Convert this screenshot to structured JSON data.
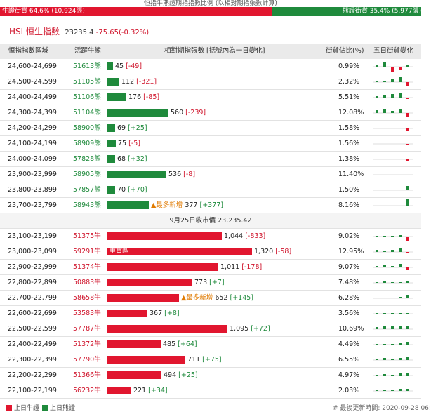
{
  "caption": "恒指牛熊證期指指數比例 (以相對期指張數計算)",
  "ratio": {
    "bull_label": "牛證街貨 64.6% (10,924張)",
    "bull_share": 64.6,
    "bear_label": "熊證街貨 35.4% (5,977張)",
    "bear_share": 35.4
  },
  "header": {
    "name": "HSI 恒生指數",
    "index": "23235.4",
    "change": "-75.65(-0.32%)"
  },
  "columns": {
    "range": "恒指指數區域",
    "code": "活躍牛熊",
    "qty": "相對期指張數 [括號內為一日變化]",
    "pct": "街貨佔比(%)",
    "history": "五日街貨變化"
  },
  "colors": {
    "bull": "#e1162f",
    "bear": "#1f8a3c",
    "new": "#e07a00"
  },
  "bear_rows": [
    {
      "range": "24,600-24,699",
      "code": "51613熊",
      "qty": "45",
      "chg": "[-49]",
      "qty_value": 45,
      "pct": "0.99%",
      "flag": "",
      "history": [
        {
          "v": 3,
          "c": "bear"
        },
        {
          "v": 6,
          "c": "bear"
        },
        {
          "v": -7,
          "c": "bull"
        },
        {
          "v": -5,
          "c": "bull"
        },
        {
          "v": 2,
          "c": "bear"
        }
      ]
    },
    {
      "range": "24,500-24,599",
      "code": "51105熊",
      "qty": "112",
      "chg": "[-321]",
      "qty_value": 112,
      "pct": "2.32%",
      "flag": "",
      "history": [
        {
          "v": 1,
          "c": "bear"
        },
        {
          "v": 2,
          "c": "bear"
        },
        {
          "v": 4,
          "c": "bear"
        },
        {
          "v": 7,
          "c": "bear"
        },
        {
          "v": -6,
          "c": "bull"
        }
      ]
    },
    {
      "range": "24,400-24,499",
      "code": "51106熊",
      "qty": "176",
      "chg": "[-85]",
      "qty_value": 176,
      "pct": "5.51%",
      "flag": "",
      "history": [
        {
          "v": 2,
          "c": "bear"
        },
        {
          "v": 4,
          "c": "bear"
        },
        {
          "v": 5,
          "c": "bear"
        },
        {
          "v": 7,
          "c": "bear"
        },
        {
          "v": -2,
          "c": "bull"
        }
      ]
    },
    {
      "range": "24,300-24,399",
      "code": "51104熊",
      "qty": "560",
      "chg": "[-239]",
      "qty_value": 560,
      "pct": "12.08%",
      "flag": "",
      "history": [
        {
          "v": 4,
          "c": "bear"
        },
        {
          "v": 5,
          "c": "bear"
        },
        {
          "v": 3,
          "c": "bear"
        },
        {
          "v": 6,
          "c": "bear"
        },
        {
          "v": -5,
          "c": "bull"
        }
      ]
    },
    {
      "range": "24,200-24,299",
      "code": "58900熊",
      "qty": "69",
      "chg": "[+25]",
      "qty_value": 69,
      "pct": "1.58%",
      "flag": "",
      "history": [
        {
          "v": 0,
          "c": "bear"
        },
        {
          "v": 0,
          "c": "bear"
        },
        {
          "v": 0,
          "c": "bear"
        },
        {
          "v": 0,
          "c": "bear"
        },
        {
          "v": -3,
          "c": "bull"
        }
      ]
    },
    {
      "range": "24,100-24,199",
      "code": "58909熊",
      "qty": "75",
      "chg": "[-5]",
      "qty_value": 75,
      "pct": "1.56%",
      "flag": "",
      "history": [
        {
          "v": 0,
          "c": "bear"
        },
        {
          "v": 0,
          "c": "bear"
        },
        {
          "v": 0,
          "c": "bear"
        },
        {
          "v": 0,
          "c": "bear"
        },
        {
          "v": -2,
          "c": "bull"
        }
      ]
    },
    {
      "range": "24,000-24,099",
      "code": "57828熊",
      "qty": "68",
      "chg": "[+32]",
      "qty_value": 68,
      "pct": "1.38%",
      "flag": "",
      "history": [
        {
          "v": 0,
          "c": "bear"
        },
        {
          "v": 0,
          "c": "bear"
        },
        {
          "v": 0,
          "c": "bear"
        },
        {
          "v": 0,
          "c": "bear"
        },
        {
          "v": -2,
          "c": "bull"
        }
      ]
    },
    {
      "range": "23,900-23,999",
      "code": "58905熊",
      "qty": "536",
      "chg": "[-8]",
      "qty_value": 536,
      "pct": "11.40%",
      "flag": "",
      "history": [
        {
          "v": 0,
          "c": "bear"
        },
        {
          "v": 0,
          "c": "bear"
        },
        {
          "v": 0,
          "c": "bear"
        },
        {
          "v": 0,
          "c": "bear"
        },
        {
          "v": -1,
          "c": "bull"
        }
      ]
    },
    {
      "range": "23,800-23,899",
      "code": "57857熊",
      "qty": "70",
      "chg": "[+70]",
      "qty_value": 70,
      "pct": "1.50%",
      "flag": "",
      "history": [
        {
          "v": 0,
          "c": "bear"
        },
        {
          "v": 0,
          "c": "bear"
        },
        {
          "v": 0,
          "c": "bear"
        },
        {
          "v": 0,
          "c": "bear"
        },
        {
          "v": 6,
          "c": "bear"
        }
      ]
    },
    {
      "range": "23,700-23,799",
      "code": "58943熊",
      "qty": "377",
      "chg": "[+377]",
      "qty_value": 377,
      "pct": "8.16%",
      "flag": "▲最多新增",
      "history": [
        {
          "v": 0,
          "c": "bear"
        },
        {
          "v": 0,
          "c": "bear"
        },
        {
          "v": 0,
          "c": "bear"
        },
        {
          "v": 0,
          "c": "bear"
        },
        {
          "v": 9,
          "c": "bear"
        }
      ]
    }
  ],
  "close_line": "9月25日收市價 23,235.42",
  "bull_rows": [
    {
      "range": "23,100-23,199",
      "code": "51375牛",
      "qty": "1,044",
      "chg": "[-833]",
      "qty_value": 1044,
      "pct": "9.02%",
      "flag": "",
      "label_in_bar": "",
      "history": [
        {
          "v": 1,
          "c": "bear"
        },
        {
          "v": 1,
          "c": "bear"
        },
        {
          "v": 1,
          "c": "bear"
        },
        {
          "v": 2,
          "c": "bear"
        },
        {
          "v": -7,
          "c": "bull"
        }
      ]
    },
    {
      "range": "23,000-23,099",
      "code": "59291牛",
      "qty": "1,320",
      "chg": "[-58]",
      "qty_value": 1320,
      "pct": "12.95%",
      "flag": "",
      "label_in_bar": "重貨區",
      "history": [
        {
          "v": 3,
          "c": "bear"
        },
        {
          "v": 2,
          "c": "bear"
        },
        {
          "v": 3,
          "c": "bear"
        },
        {
          "v": 6,
          "c": "bear"
        },
        {
          "v": -2,
          "c": "bull"
        }
      ]
    },
    {
      "range": "22,900-22,999",
      "code": "51374牛",
      "qty": "1,011",
      "chg": "[-178]",
      "qty_value": 1011,
      "pct": "9.07%",
      "flag": "",
      "label_in_bar": "",
      "history": [
        {
          "v": 2,
          "c": "bear"
        },
        {
          "v": 3,
          "c": "bear"
        },
        {
          "v": 2,
          "c": "bear"
        },
        {
          "v": 5,
          "c": "bear"
        },
        {
          "v": -3,
          "c": "bull"
        }
      ]
    },
    {
      "range": "22,800-22,899",
      "code": "50883牛",
      "qty": "773",
      "chg": "[+7]",
      "qty_value": 773,
      "pct": "7.48%",
      "flag": "",
      "label_in_bar": "",
      "history": [
        {
          "v": 1,
          "c": "bear"
        },
        {
          "v": 2,
          "c": "bear"
        },
        {
          "v": 1,
          "c": "bear"
        },
        {
          "v": 1,
          "c": "bear"
        },
        {
          "v": 2,
          "c": "bear"
        }
      ]
    },
    {
      "range": "22,700-22,799",
      "code": "58658牛",
      "qty": "652",
      "chg": "[+145]",
      "qty_value": 652,
      "pct": "6.28%",
      "flag": "▲最多新增",
      "label_in_bar": "",
      "history": [
        {
          "v": 1,
          "c": "bear"
        },
        {
          "v": 1,
          "c": "bear"
        },
        {
          "v": 1,
          "c": "bear"
        },
        {
          "v": 2,
          "c": "bear"
        },
        {
          "v": 4,
          "c": "bear"
        }
      ]
    },
    {
      "range": "22,600-22,699",
      "code": "53583牛",
      "qty": "367",
      "chg": "[+8]",
      "qty_value": 367,
      "pct": "3.56%",
      "flag": "",
      "label_in_bar": "",
      "history": [
        {
          "v": 1,
          "c": "bear"
        },
        {
          "v": 1,
          "c": "bear"
        },
        {
          "v": 1,
          "c": "bear"
        },
        {
          "v": 1,
          "c": "bear"
        },
        {
          "v": 1,
          "c": "bear"
        }
      ]
    },
    {
      "range": "22,500-22,599",
      "code": "57787牛",
      "qty": "1,095",
      "chg": "[+72]",
      "qty_value": 1095,
      "pct": "10.69%",
      "flag": "",
      "label_in_bar": "",
      "history": [
        {
          "v": 3,
          "c": "bear"
        },
        {
          "v": 4,
          "c": "bear"
        },
        {
          "v": 5,
          "c": "bear"
        },
        {
          "v": 4,
          "c": "bear"
        },
        {
          "v": 4,
          "c": "bear"
        }
      ]
    },
    {
      "range": "22,400-22,499",
      "code": "51372牛",
      "qty": "485",
      "chg": "[+64]",
      "qty_value": 485,
      "pct": "4.49%",
      "flag": "",
      "label_in_bar": "",
      "history": [
        {
          "v": 1,
          "c": "bear"
        },
        {
          "v": 1,
          "c": "bear"
        },
        {
          "v": 1,
          "c": "bear"
        },
        {
          "v": 3,
          "c": "bear"
        },
        {
          "v": 4,
          "c": "bear"
        }
      ]
    },
    {
      "range": "22,300-22,399",
      "code": "57790牛",
      "qty": "711",
      "chg": "[+75]",
      "qty_value": 711,
      "pct": "6.55%",
      "flag": "",
      "label_in_bar": "",
      "history": [
        {
          "v": 2,
          "c": "bear"
        },
        {
          "v": 3,
          "c": "bear"
        },
        {
          "v": 2,
          "c": "bear"
        },
        {
          "v": 3,
          "c": "bear"
        },
        {
          "v": 5,
          "c": "bear"
        }
      ]
    },
    {
      "range": "22,200-22,299",
      "code": "51366牛",
      "qty": "494",
      "chg": "[+25]",
      "qty_value": 494,
      "pct": "4.97%",
      "flag": "",
      "label_in_bar": "",
      "history": [
        {
          "v": 1,
          "c": "bear"
        },
        {
          "v": 2,
          "c": "bear"
        },
        {
          "v": 1,
          "c": "bear"
        },
        {
          "v": 3,
          "c": "bear"
        },
        {
          "v": 4,
          "c": "bear"
        }
      ]
    },
    {
      "range": "22,100-22,199",
      "code": "56232牛",
      "qty": "221",
      "chg": "[+34]",
      "qty_value": 221,
      "pct": "2.03%",
      "flag": "",
      "label_in_bar": "",
      "history": [
        {
          "v": 1,
          "c": "bear"
        },
        {
          "v": 1,
          "c": "bear"
        },
        {
          "v": 2,
          "c": "bear"
        },
        {
          "v": 3,
          "c": "bear"
        },
        {
          "v": 3,
          "c": "bear"
        }
      ]
    }
  ],
  "legend": {
    "bull": "上日牛證",
    "bear": "上日熊證",
    "updated": "# 最後更新時間: 2020-09-28 06:"
  }
}
